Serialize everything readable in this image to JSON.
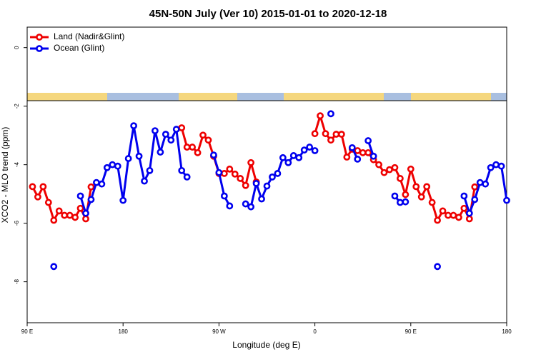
{
  "chart_data": {
    "type": "line",
    "title": "45N-50N July (Ver 10)   2015-01-01 to 2020-12-18",
    "xlabel": "Longitude (deg E)",
    "ylabel": "XCO2 - MLO trend (ppm)",
    "legend": "top-left",
    "x": [
      90,
      95,
      100,
      105,
      110,
      115,
      120,
      125,
      130,
      135,
      140,
      145,
      150,
      155,
      160,
      165,
      170,
      175,
      180,
      185,
      190,
      195,
      200,
      205,
      210,
      215,
      220,
      225,
      230,
      235,
      240,
      245,
      250,
      255,
      260,
      265,
      270,
      275,
      280,
      285,
      290,
      295,
      300,
      305,
      310,
      315,
      320,
      325,
      330,
      335,
      340,
      345,
      350,
      355,
      360,
      365,
      370,
      375,
      380,
      385,
      390,
      395,
      400,
      405,
      410,
      415,
      420,
      425,
      430,
      435,
      440,
      445,
      450,
      455,
      460,
      465,
      470,
      475,
      480,
      485,
      490,
      495,
      500,
      505,
      510,
      515,
      520,
      525,
      530,
      535,
      540
    ],
    "series": [
      {
        "name": "Land (Nadir&Glint)",
        "color": "#ee0000",
        "values": [
          null,
          -4.75,
          -5.1,
          -4.75,
          -5.29,
          -5.9,
          -5.58,
          -5.73,
          -5.73,
          -5.8,
          -5.49,
          -5.85,
          -4.76,
          null,
          null,
          null,
          null,
          null,
          null,
          null,
          null,
          null,
          null,
          null,
          null,
          null,
          null,
          null,
          null,
          -2.74,
          -3.4,
          -3.4,
          -3.59,
          -2.99,
          -3.16,
          -3.71,
          -4.3,
          -4.3,
          -4.15,
          -4.32,
          -4.47,
          -4.71,
          -3.93,
          -4.59,
          null,
          null,
          null,
          null,
          null,
          null,
          null,
          null,
          null,
          null,
          -2.94,
          -2.33,
          -2.94,
          -3.16,
          -2.96,
          -2.96,
          -3.74,
          -3.47,
          -3.52,
          -3.59,
          -3.59,
          -3.83,
          -4.0,
          -4.27,
          -4.17,
          -4.1,
          -4.47,
          -5.02,
          -4.15,
          -4.75,
          -5.1,
          -4.75,
          -5.29,
          -5.9,
          -5.58,
          -5.73,
          -5.73,
          -5.8,
          -5.49,
          -5.85,
          -4.76,
          null,
          null,
          null,
          null,
          null,
          null
        ]
      },
      {
        "name": "Ocean (Glint)",
        "color": "#0000ee",
        "values": [
          null,
          null,
          null,
          null,
          null,
          -7.48,
          null,
          null,
          null,
          null,
          -5.07,
          -5.66,
          -5.19,
          -4.61,
          -4.66,
          -4.1,
          -4.0,
          -4.05,
          -5.22,
          -3.79,
          -2.67,
          -3.71,
          -4.56,
          -4.2,
          -2.84,
          -3.57,
          -2.96,
          -3.16,
          -2.79,
          -4.2,
          -4.42,
          null,
          null,
          null,
          null,
          -3.67,
          -4.27,
          -5.07,
          -5.41,
          null,
          null,
          -5.34,
          -5.44,
          -4.64,
          -5.17,
          -4.73,
          -4.42,
          -4.3,
          -3.76,
          -3.93,
          -3.69,
          -3.76,
          -3.5,
          -3.4,
          -3.52,
          null,
          null,
          -2.26,
          null,
          null,
          null,
          -3.42,
          -3.81,
          null,
          -3.18,
          -3.71,
          null,
          null,
          null,
          -5.07,
          -5.29,
          -5.27,
          null,
          null,
          null,
          null,
          null,
          -7.48,
          null,
          null,
          null,
          null,
          -5.07,
          -5.66,
          -5.19,
          -4.61,
          -4.66,
          -4.1,
          -4.0,
          -4.05,
          -5.22
        ]
      }
    ],
    "xlim": [
      90,
      540
    ],
    "xticks": [
      {
        "value": 90,
        "label": "90 E"
      },
      180,
      {
        "value": 270,
        "label": "90 W"
      },
      {
        "value": 360,
        "label": "0"
      },
      {
        "value": 450,
        "label": "90 E"
      },
      {
        "value": 540,
        "label": "180"
      }
    ],
    "ylim": [
      -9.4,
      0.7
    ],
    "yticks": [
      0,
      -2,
      -4,
      -6,
      -8
    ]
  }
}
